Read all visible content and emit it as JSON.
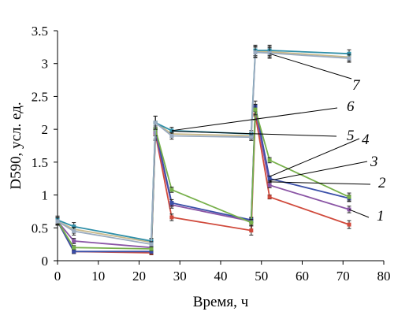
{
  "chart_data": {
    "type": "line",
    "title": "",
    "xlabel": "Время, ч",
    "ylabel": "D590, усл. ед.",
    "xlim": [
      0,
      80
    ],
    "ylim": [
      0,
      3.5
    ],
    "x_ticks": [
      "0",
      "10",
      "20",
      "30",
      "40",
      "50",
      "60",
      "70",
      "80"
    ],
    "y_ticks": [
      "0",
      "0.5",
      "1",
      "1.5",
      "2",
      "2.5",
      "3",
      "3.5"
    ],
    "grid": false,
    "legend": "none",
    "series_label_style": "italic numerals with leader lines",
    "series": [
      {
        "name": "1",
        "color": "#d04a3c",
        "x": [
          0,
          4,
          23,
          24,
          28,
          47.5,
          48.5,
          52,
          71.5
        ],
        "y": [
          0.6,
          0.14,
          0.12,
          1.93,
          0.66,
          0.46,
          2.22,
          0.97,
          0.55
        ],
        "err": [
          0.05,
          0.03,
          0.03,
          0.1,
          0.05,
          0.07,
          0.08,
          0.03,
          0.06
        ]
      },
      {
        "name": "2",
        "color": "#8a55a5",
        "x": [
          0,
          4,
          23,
          24,
          28,
          47.5,
          48.5,
          52,
          71.5
        ],
        "y": [
          0.6,
          0.3,
          0.2,
          1.95,
          0.85,
          0.6,
          2.3,
          1.15,
          0.78
        ],
        "err": [
          0.05,
          0.04,
          0.03,
          0.1,
          0.05,
          0.05,
          0.08,
          0.04,
          0.05
        ]
      },
      {
        "name": "3",
        "color": "#3a4fa8",
        "x": [
          0,
          4,
          23,
          24,
          28,
          47.5,
          48.5,
          52,
          71.5
        ],
        "y": [
          0.6,
          0.14,
          0.14,
          2.0,
          0.88,
          0.62,
          2.35,
          1.25,
          0.95
        ],
        "err": [
          0.05,
          0.03,
          0.03,
          0.1,
          0.05,
          0.04,
          0.08,
          0.04,
          0.05
        ]
      },
      {
        "name": "4",
        "color": "#77b04a",
        "x": [
          0,
          4,
          23,
          24,
          28,
          47.5,
          48.5,
          52,
          71.5
        ],
        "y": [
          0.6,
          0.2,
          0.18,
          2.0,
          1.08,
          0.58,
          2.3,
          1.53,
          0.97
        ],
        "err": [
          0.05,
          0.03,
          0.03,
          0.1,
          0.04,
          0.05,
          0.08,
          0.04,
          0.06
        ]
      },
      {
        "name": "5",
        "color": "#c9b98a",
        "x": [
          0,
          4,
          23,
          24,
          28,
          47.5,
          48.5,
          52,
          71.5
        ],
        "y": [
          0.6,
          0.48,
          0.28,
          2.1,
          1.93,
          1.9,
          3.18,
          3.18,
          3.1
        ],
        "err": [
          0.06,
          0.06,
          0.04,
          0.1,
          0.05,
          0.05,
          0.08,
          0.08,
          0.06
        ]
      },
      {
        "name": "6",
        "color": "#2f8fa8",
        "x": [
          0,
          4,
          23,
          24,
          28,
          47.5,
          48.5,
          52,
          71.5
        ],
        "y": [
          0.62,
          0.52,
          0.3,
          2.1,
          1.98,
          1.93,
          3.2,
          3.2,
          3.15
        ],
        "err": [
          0.06,
          0.06,
          0.04,
          0.1,
          0.05,
          0.05,
          0.08,
          0.08,
          0.06
        ]
      },
      {
        "name": "7",
        "color": "#9aabc0",
        "x": [
          0,
          4,
          23,
          24,
          28,
          47.5,
          48.5,
          52,
          71.5
        ],
        "y": [
          0.6,
          0.45,
          0.25,
          2.1,
          1.9,
          1.88,
          3.17,
          3.16,
          3.08
        ],
        "err": [
          0.06,
          0.06,
          0.04,
          0.1,
          0.05,
          0.05,
          0.08,
          0.08,
          0.06
        ]
      }
    ]
  }
}
